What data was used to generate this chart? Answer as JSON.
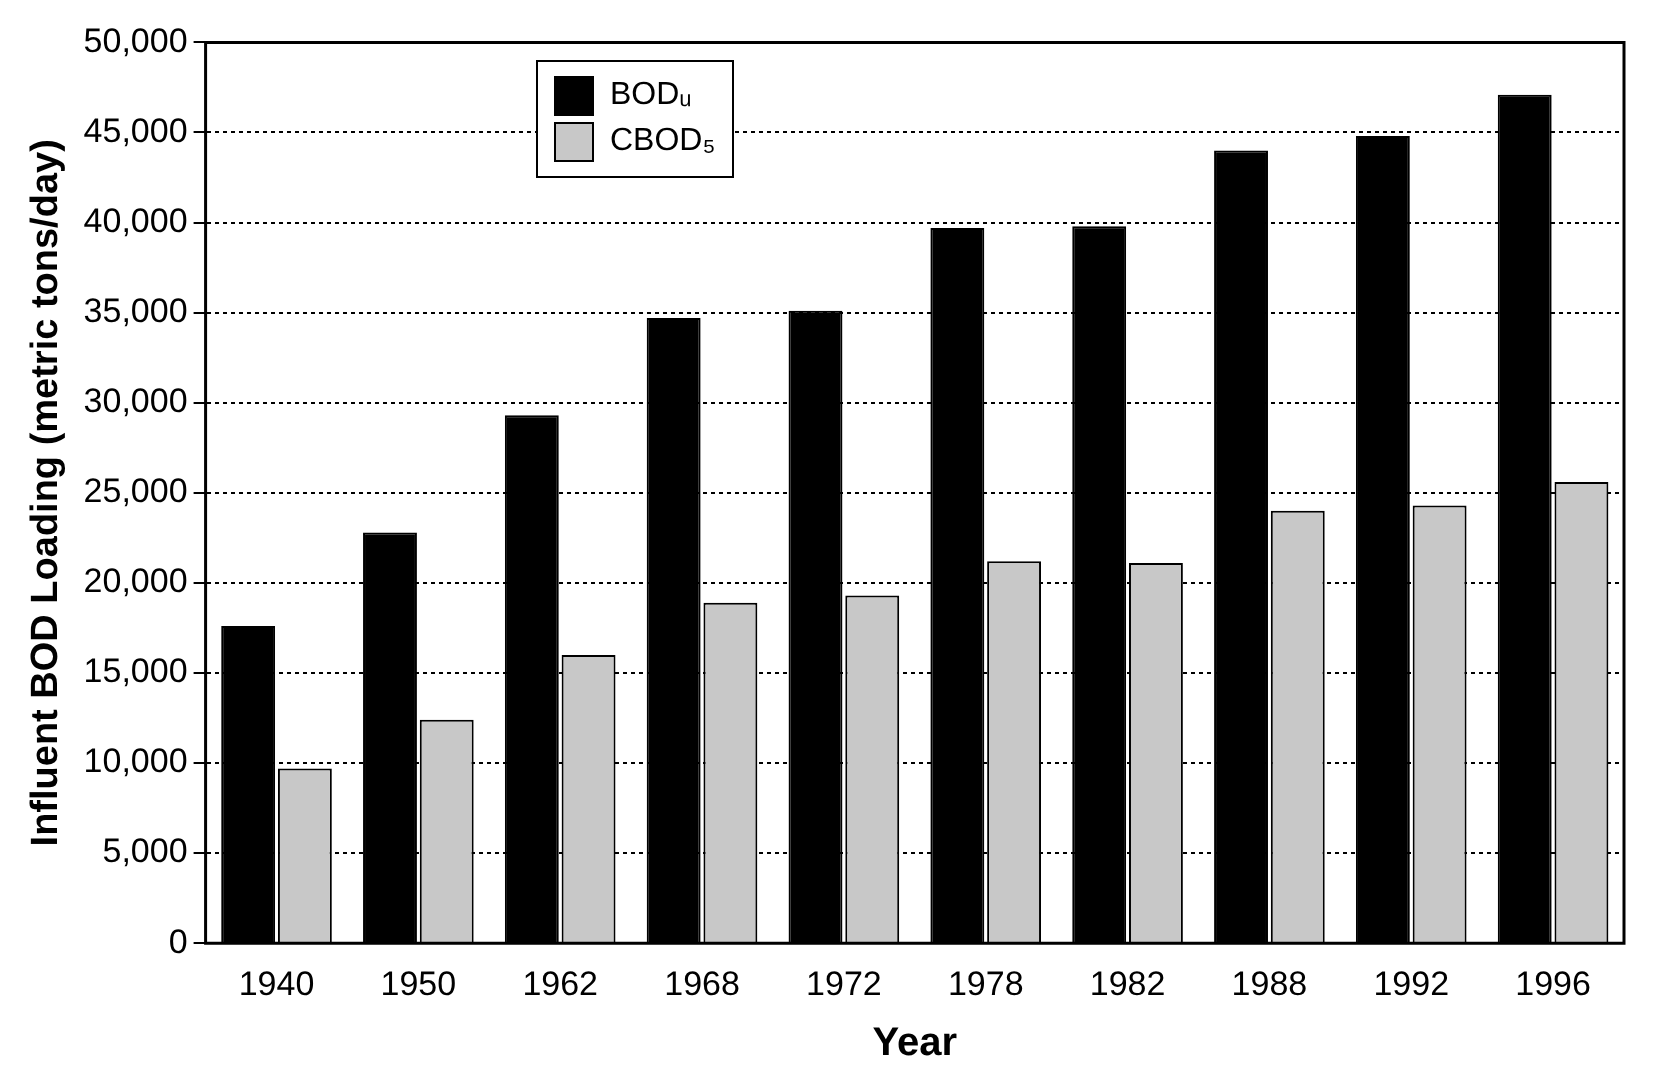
{
  "chart_data": {
    "type": "bar",
    "xlabel": "Year",
    "ylabel": "Influent BOD Loading (metric tons/day)",
    "categories": [
      "1940",
      "1950",
      "1962",
      "1968",
      "1972",
      "1978",
      "1982",
      "1988",
      "1992",
      "1996"
    ],
    "series": [
      {
        "name": "BODᵤ",
        "color": "#000000",
        "values": [
          17600,
          22800,
          29300,
          34700,
          35100,
          39700,
          39800,
          44000,
          44800,
          47100
        ]
      },
      {
        "name": "CBOD₅",
        "color": "#c8c8c8",
        "values": [
          9700,
          12400,
          16000,
          18900,
          19300,
          21200,
          21100,
          24000,
          24300,
          25600
        ]
      }
    ],
    "ylim": [
      0,
      50000
    ],
    "yticks": [
      {
        "value": 0,
        "label": "0"
      },
      {
        "value": 5000,
        "label": "5,000"
      },
      {
        "value": 10000,
        "label": "10,000"
      },
      {
        "value": 15000,
        "label": "15,000"
      },
      {
        "value": 20000,
        "label": "20,000"
      },
      {
        "value": 25000,
        "label": "25,000"
      },
      {
        "value": 30000,
        "label": "30,000"
      },
      {
        "value": 35000,
        "label": "35,000"
      },
      {
        "value": 40000,
        "label": "40,000"
      },
      {
        "value": 45000,
        "label": "45,000"
      },
      {
        "value": 50000,
        "label": "50,000"
      }
    ],
    "grid": "y",
    "legend": "top left"
  }
}
